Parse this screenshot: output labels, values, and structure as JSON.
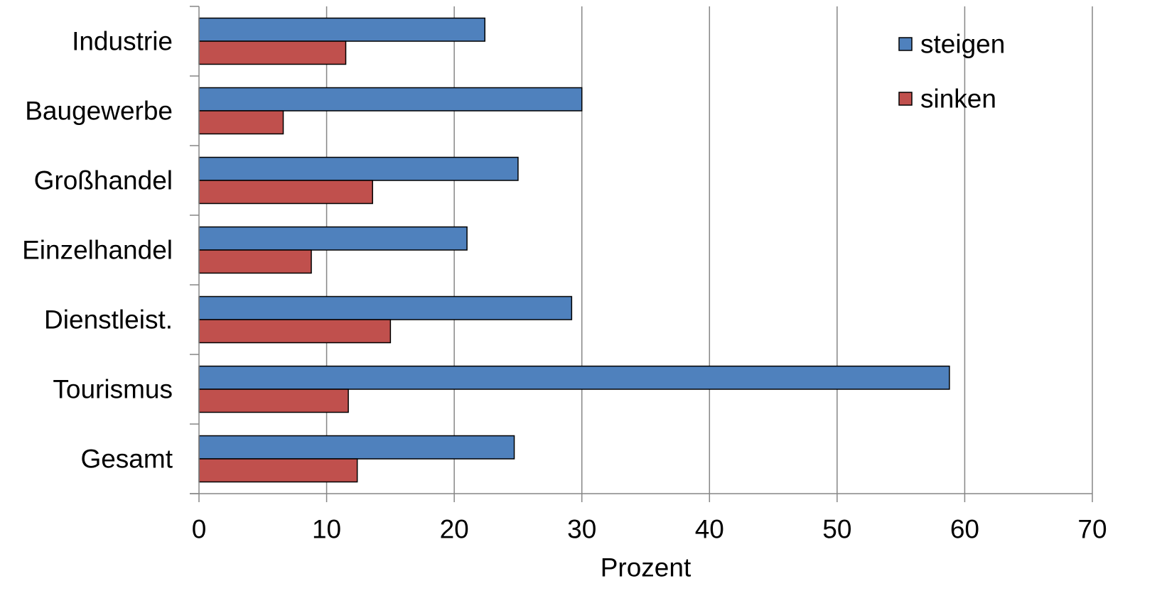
{
  "chart_data": {
    "type": "bar",
    "orientation": "horizontal",
    "categories": [
      "Industrie",
      "Baugewerbe",
      "Großhandel",
      "Einzelhandel",
      "Dienstleist.",
      "Tourismus",
      "Gesamt"
    ],
    "series": [
      {
        "name": "steigen",
        "color": "#4F81BD",
        "values": [
          22.4,
          30.0,
          25.0,
          21.0,
          29.2,
          58.8,
          24.7
        ]
      },
      {
        "name": "sinken",
        "color": "#C0504D",
        "values": [
          11.5,
          6.6,
          13.6,
          8.8,
          15.0,
          11.7,
          12.4
        ]
      }
    ],
    "xlabel": "Prozent",
    "ylabel": "",
    "xlim": [
      0,
      70
    ],
    "xticks": [
      0,
      10,
      20,
      30,
      40,
      50,
      60,
      70
    ],
    "grid": "vertical",
    "legend": "top-right"
  }
}
